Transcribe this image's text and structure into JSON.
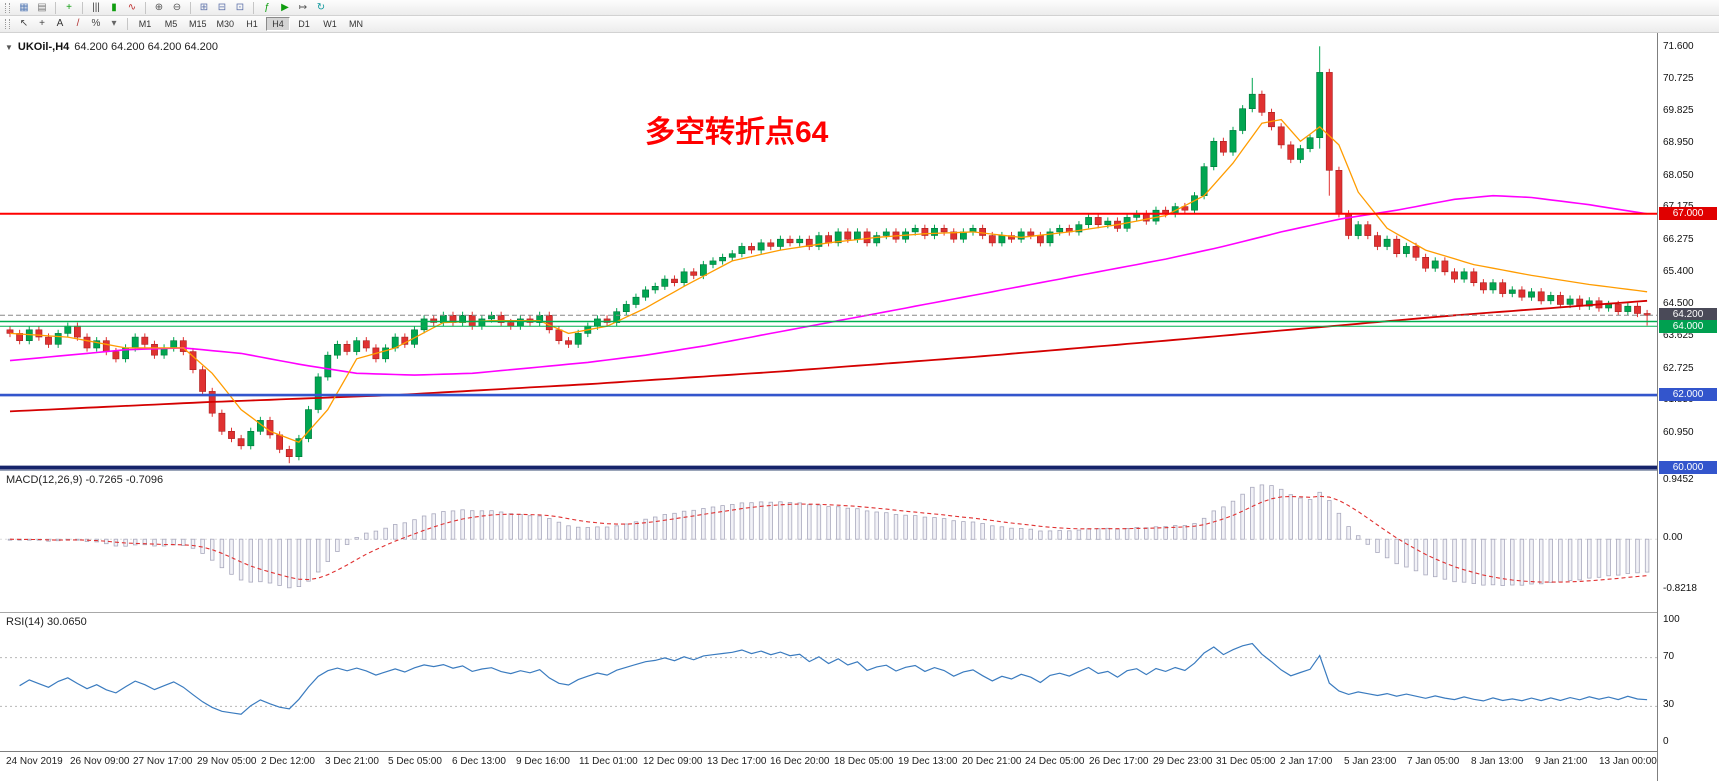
{
  "toolbar_main": {
    "groups": [
      [
        {
          "name": "charts-grid",
          "glyph": "▦",
          "color": "#5b7fb8"
        },
        {
          "name": "profiles",
          "glyph": "▤",
          "color": "#7a7a7a"
        }
      ],
      [
        {
          "name": "new-order",
          "glyph": "+",
          "color": "#0f9d0f"
        }
      ],
      [
        {
          "name": "bars-mode",
          "glyph": "|||",
          "color": "#444444"
        },
        {
          "name": "candles-mode",
          "glyph": "▮",
          "color": "#0f9d0f"
        },
        {
          "name": "line-mode",
          "glyph": "∿",
          "color": "#c03030"
        }
      ],
      [
        {
          "name": "zoom-in",
          "glyph": "⊕",
          "color": "#555555"
        },
        {
          "name": "zoom-out",
          "glyph": "⊖",
          "color": "#555555"
        }
      ],
      [
        {
          "name": "tile-windows",
          "glyph": "⊞",
          "color": "#5b6fa8"
        },
        {
          "name": "tile-horizontal",
          "glyph": "⊟",
          "color": "#5b6fa8"
        },
        {
          "name": "cascade-windows",
          "glyph": "⊡",
          "color": "#5b6fa8"
        }
      ],
      [
        {
          "name": "indicators-list",
          "glyph": "ƒ",
          "color": "#0f9d0f"
        },
        {
          "name": "auto-scroll",
          "glyph": "▶",
          "color": "#0f9d0f"
        },
        {
          "name": "chart-shift",
          "glyph": "↦",
          "color": "#555555"
        },
        {
          "name": "refresh",
          "glyph": "↻",
          "color": "#11999e"
        }
      ]
    ]
  },
  "toolbar_timeframes": {
    "tools": [
      {
        "name": "cursor-tool",
        "glyph": "↖",
        "color": "#444444"
      },
      {
        "name": "crosshair-tool",
        "glyph": "+",
        "color": "#444444"
      },
      {
        "name": "text-label-tool",
        "glyph": "A",
        "color": "#333333"
      },
      {
        "name": "trendline-tool",
        "glyph": "/",
        "color": "#b03030"
      },
      {
        "name": "fibonacci-tool",
        "glyph": "%",
        "color": "#444444"
      },
      {
        "name": "shapes-dropdown",
        "glyph": "▾",
        "color": "#666666"
      }
    ],
    "timeframes": [
      "M1",
      "M5",
      "M15",
      "M30",
      "H1",
      "H4",
      "D1",
      "W1",
      "MN"
    ],
    "active": "H4"
  },
  "chart": {
    "symbol_label": "UKOil-,H4",
    "ohlc": "64.200 64.200 64.200 64.200",
    "annotation": {
      "text": "多空转折点64",
      "color": "#ff0000"
    },
    "y_axis_labels": [
      "71.600",
      "70.725",
      "69.825",
      "68.950",
      "68.050",
      "67.175",
      "66.275",
      "65.400",
      "64.500",
      "63.625",
      "62.725",
      "61.850",
      "60.950"
    ],
    "hlines": [
      {
        "value": 67.0,
        "color": "#ff0000",
        "width": 2,
        "dash": null,
        "badge": "67.000",
        "badge_color": "#e00000",
        "badge_dy": 0
      },
      {
        "value": 64.2,
        "color": "#888888",
        "width": 1,
        "dash": "5 3",
        "badge": "64.200",
        "badge_color": "#4a4a58",
        "badge_dy": 0
      },
      {
        "value": 64.03,
        "color": "#00b050",
        "width": 1.6,
        "dash": null,
        "badge": "64.000",
        "badge_color": "#00a050",
        "badge_dy": 6
      },
      {
        "value": 63.9,
        "color": "#00b050",
        "width": 1,
        "dash": null
      },
      {
        "value": 62.0,
        "color": "#3355cc",
        "width": 2.6,
        "dash": null,
        "badge": "62.000",
        "badge_color": "#3355cc",
        "badge_dy": 0
      },
      {
        "value": 60.0,
        "color": "#16246b",
        "width": 4,
        "dash": null,
        "badge": "60.000",
        "badge_color": "#3355cc",
        "badge_dy": 0
      }
    ],
    "colors": {
      "up": "#00a651",
      "up_border": "#00753a",
      "down": "#e03131",
      "down_border": "#a82020",
      "ma_fast": "#ff9c00",
      "ma_mid": "#ff00ff",
      "ma_slow": "#d40000",
      "macd_hist_fill": "#f2f2f7",
      "macd_hist_border": "#a9a9bd",
      "macd_signal": "#e03131",
      "rsi": "#3a7bbf",
      "level": "#b8b8b8"
    }
  },
  "macd": {
    "label": "MACD(12,26,9) -0.7265 -0.7096",
    "axis": [
      {
        "text": "0.9452",
        "value": 0.9452
      },
      {
        "text": "0.00",
        "value": 0
      },
      {
        "text": "-0.8218",
        "value": -0.8218
      }
    ]
  },
  "rsi": {
    "label": "RSI(14) 30.0650",
    "axis": [
      {
        "text": "100",
        "value": 100
      },
      {
        "text": "70",
        "value": 70
      },
      {
        "text": "30",
        "value": 30
      },
      {
        "text": "0",
        "value": 0
      }
    ],
    "levels": [
      70,
      30
    ]
  },
  "timeline": {
    "labels": [
      "24 Nov 2019",
      "26 Nov 09:00",
      "27 Nov 17:00",
      "29 Nov 05:00",
      "2 Dec 12:00",
      "3 Dec 21:00",
      "5 Dec 05:00",
      "6 Dec 13:00",
      "9 Dec 16:00",
      "11 Dec 01:00",
      "12 Dec 09:00",
      "13 Dec 17:00",
      "16 Dec 20:00",
      "18 Dec 05:00",
      "19 Dec 13:00",
      "20 Dec 21:00",
      "24 Dec 05:00",
      "26 Dec 17:00",
      "29 Dec 23:00",
      "31 Dec 05:00",
      "2 Jan 17:00",
      "5 Jan 23:00",
      "7 Jan 05:00",
      "8 Jan 13:00",
      "9 Jan 21:00",
      "13 Jan 00:00"
    ]
  },
  "chart_data": {
    "type": "candlestick",
    "symbol": "UKOil-",
    "timeframe": "H4",
    "y_range": [
      59.85,
      71.85
    ],
    "first_open": 63.8,
    "closes": [
      63.7,
      63.5,
      63.8,
      63.6,
      63.4,
      63.7,
      63.9,
      63.6,
      63.3,
      63.5,
      63.2,
      63.0,
      63.3,
      63.6,
      63.4,
      63.1,
      63.3,
      63.5,
      63.2,
      62.7,
      62.1,
      61.5,
      61.0,
      60.8,
      60.6,
      61.0,
      61.3,
      60.9,
      60.5,
      60.3,
      60.8,
      61.6,
      62.5,
      63.1,
      63.4,
      63.2,
      63.5,
      63.3,
      63.0,
      63.3,
      63.6,
      63.4,
      63.8,
      64.1,
      64.0,
      64.2,
      64.0,
      64.2,
      63.9,
      64.1,
      64.2,
      64.0,
      63.9,
      64.1,
      64.0,
      64.2,
      63.8,
      63.5,
      63.4,
      63.7,
      63.9,
      64.1,
      64.0,
      64.3,
      64.5,
      64.7,
      64.9,
      65.0,
      65.2,
      65.1,
      65.4,
      65.3,
      65.6,
      65.7,
      65.8,
      65.9,
      66.1,
      66.0,
      66.2,
      66.1,
      66.3,
      66.2,
      66.3,
      66.1,
      66.4,
      66.2,
      66.5,
      66.3,
      66.5,
      66.2,
      66.4,
      66.5,
      66.3,
      66.5,
      66.6,
      66.4,
      66.6,
      66.5,
      66.3,
      66.5,
      66.6,
      66.4,
      66.2,
      66.4,
      66.3,
      66.5,
      66.4,
      66.2,
      66.5,
      66.6,
      66.5,
      66.7,
      66.9,
      66.7,
      66.8,
      66.6,
      66.9,
      67.0,
      66.8,
      67.1,
      67.0,
      67.2,
      67.1,
      67.5,
      68.3,
      69.0,
      68.7,
      69.3,
      69.9,
      70.3,
      69.8,
      69.4,
      68.9,
      68.5,
      68.8,
      69.1,
      70.9,
      68.2,
      67.0,
      66.4,
      66.7,
      66.4,
      66.1,
      66.3,
      65.9,
      66.1,
      65.8,
      65.5,
      65.7,
      65.4,
      65.2,
      65.4,
      65.1,
      64.9,
      65.1,
      64.8,
      64.9,
      64.7,
      64.85,
      64.6,
      64.75,
      64.5,
      64.65,
      64.45,
      64.6,
      64.4,
      64.5,
      64.3,
      64.45,
      64.25,
      64.2
    ],
    "wick_high_overrides": {
      "129": 70.75,
      "136": 71.62
    },
    "wick_low_overrides": {
      "29": 60.12,
      "136": 68.8,
      "137": 67.5,
      "170": 63.92
    },
    "ma_fast_anchors": [
      [
        0,
        63.7
      ],
      [
        6,
        63.6
      ],
      [
        12,
        63.3
      ],
      [
        18,
        63.3
      ],
      [
        21,
        62.6
      ],
      [
        24,
        61.6
      ],
      [
        27,
        61.0
      ],
      [
        30,
        60.7
      ],
      [
        33,
        61.6
      ],
      [
        36,
        63.0
      ],
      [
        40,
        63.3
      ],
      [
        45,
        64.0
      ],
      [
        50,
        64.05
      ],
      [
        55,
        64.05
      ],
      [
        58,
        63.7
      ],
      [
        62,
        63.9
      ],
      [
        66,
        64.4
      ],
      [
        70,
        65.0
      ],
      [
        75,
        65.7
      ],
      [
        80,
        66.0
      ],
      [
        85,
        66.2
      ],
      [
        90,
        66.35
      ],
      [
        95,
        66.45
      ],
      [
        100,
        66.5
      ],
      [
        105,
        66.35
      ],
      [
        110,
        66.5
      ],
      [
        115,
        66.7
      ],
      [
        120,
        66.95
      ],
      [
        124,
        67.5
      ],
      [
        127,
        68.4
      ],
      [
        130,
        69.5
      ],
      [
        132,
        69.6
      ],
      [
        134,
        69.0
      ],
      [
        136,
        69.4
      ],
      [
        138,
        68.9
      ],
      [
        140,
        67.6
      ],
      [
        143,
        66.6
      ],
      [
        147,
        66.0
      ],
      [
        152,
        65.6
      ],
      [
        158,
        65.3
      ],
      [
        164,
        65.05
      ],
      [
        170,
        64.85
      ]
    ],
    "ma_mid_anchors": [
      [
        0,
        62.95
      ],
      [
        6,
        63.1
      ],
      [
        12,
        63.25
      ],
      [
        18,
        63.3
      ],
      [
        24,
        63.15
      ],
      [
        30,
        62.85
      ],
      [
        36,
        62.6
      ],
      [
        42,
        62.55
      ],
      [
        48,
        62.6
      ],
      [
        54,
        62.75
      ],
      [
        60,
        62.9
      ],
      [
        66,
        63.1
      ],
      [
        72,
        63.35
      ],
      [
        78,
        63.65
      ],
      [
        84,
        63.95
      ],
      [
        90,
        64.25
      ],
      [
        96,
        64.55
      ],
      [
        102,
        64.85
      ],
      [
        108,
        65.15
      ],
      [
        114,
        65.45
      ],
      [
        120,
        65.75
      ],
      [
        126,
        66.1
      ],
      [
        132,
        66.5
      ],
      [
        138,
        66.85
      ],
      [
        144,
        67.1
      ],
      [
        150,
        67.4
      ],
      [
        154,
        67.5
      ],
      [
        158,
        67.45
      ],
      [
        164,
        67.25
      ],
      [
        170,
        67.0
      ]
    ],
    "ma_slow_anchors": [
      [
        0,
        61.55
      ],
      [
        20,
        61.8
      ],
      [
        40,
        62.0
      ],
      [
        60,
        62.3
      ],
      [
        80,
        62.65
      ],
      [
        100,
        63.05
      ],
      [
        120,
        63.5
      ],
      [
        135,
        63.85
      ],
      [
        150,
        64.2
      ],
      [
        160,
        64.4
      ],
      [
        170,
        64.6
      ]
    ]
  }
}
